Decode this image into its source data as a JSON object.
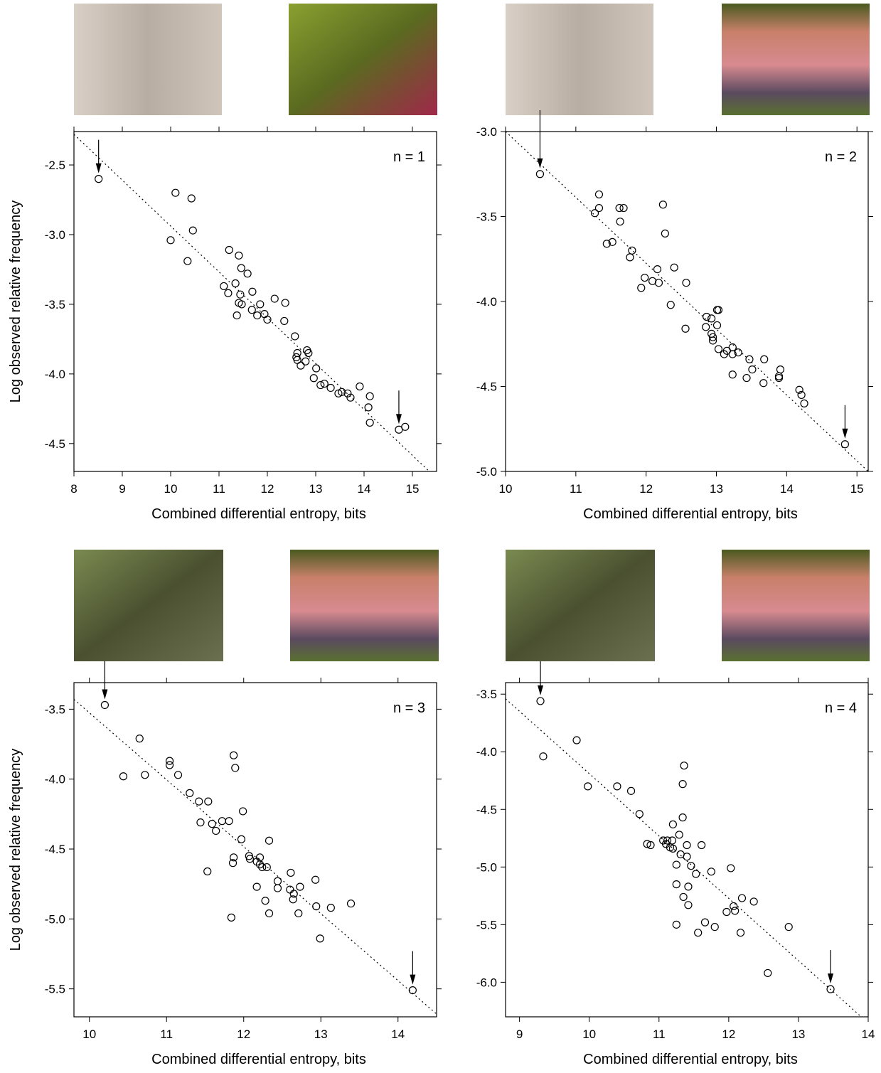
{
  "chart_data": [
    {
      "type": "scatter",
      "annotation": "n = 1",
      "xlabel": "Combined differential entropy, bits",
      "ylabel": "Log observed relative frequency",
      "color": "#000000",
      "xlim": [
        8,
        15.5
      ],
      "ylim": [
        -4.7,
        -2.26
      ],
      "xticks": [
        8,
        9,
        10,
        11,
        12,
        13,
        14,
        15
      ],
      "yticks": [
        -2.5,
        {
          "value": -3,
          "label": "-3.0"
        },
        -3.5,
        {
          "value": -4,
          "label": "-4.0"
        },
        -4.5
      ],
      "x": [
        8.51,
        10.1,
        10.43,
        10.46,
        10.0,
        10.35,
        11.21,
        11.41,
        11.46,
        11.59,
        11.1,
        11.19,
        11.34,
        11.44,
        11.41,
        11.47,
        11.69,
        11.68,
        11.37,
        11.79,
        11.85,
        11.94,
        12.0,
        12.15,
        12.37,
        12.35,
        12.57,
        12.62,
        12.6,
        12.62,
        12.69,
        12.79,
        12.82,
        12.85,
        13.01,
        12.96,
        13.1,
        13.18,
        13.31,
        13.47,
        13.54,
        13.66,
        13.72,
        13.91,
        14.12,
        14.09,
        14.12,
        14.72,
        14.85
      ],
      "y": [
        -2.6,
        -2.7,
        -2.74,
        -2.97,
        -3.04,
        -3.19,
        -3.11,
        -3.15,
        -3.24,
        -3.28,
        -3.37,
        -3.42,
        -3.35,
        -3.43,
        -3.49,
        -3.5,
        -3.41,
        -3.54,
        -3.58,
        -3.58,
        -3.5,
        -3.57,
        -3.61,
        -3.46,
        -3.49,
        -3.62,
        -3.73,
        -3.85,
        -3.88,
        -3.9,
        -3.94,
        -3.91,
        -3.83,
        -3.85,
        -3.96,
        -4.03,
        -4.08,
        -4.07,
        -4.1,
        -4.14,
        -4.13,
        -4.14,
        -4.17,
        -4.09,
        -4.16,
        -4.24,
        -4.35,
        -4.4,
        -4.38
      ],
      "fit": {
        "x": [
          8,
          15.35
        ],
        "y": [
          -2.28,
          -4.7
        ]
      },
      "arrows": {
        "x": [
          8.51,
          14.72
        ],
        "y": [
          -2.6,
          -4.4
        ]
      }
    },
    {
      "type": "scatter",
      "annotation": "n = 2",
      "xlabel": "Combined differential entropy, bits",
      "color": "#000000",
      "xlim": [
        10,
        15.16
      ],
      "ylim": [
        -5,
        -3
      ],
      "xticks": [
        10,
        11,
        12,
        13,
        14,
        15
      ],
      "yticks": [
        {
          "value": -3,
          "label": "-3.0"
        },
        -3.5,
        {
          "value": -4,
          "label": "-4.0"
        },
        -4.5,
        {
          "value": -5,
          "label": "-5.0"
        }
      ],
      "x": [
        10.49,
        11.33,
        11.27,
        11.33,
        11.62,
        11.68,
        11.63,
        11.44,
        11.52,
        11.8,
        11.77,
        12.24,
        12.27,
        11.98,
        11.93,
        12.09,
        12.16,
        12.18,
        12.4,
        12.57,
        12.35,
        12.56,
        12.86,
        12.85,
        12.93,
        12.93,
        12.95,
        12.95,
        13.01,
        13.01,
        13.03,
        13.03,
        13.11,
        13.15,
        13.23,
        13.23,
        13.31,
        13.23,
        13.47,
        13.51,
        13.43,
        13.68,
        13.67,
        13.89,
        13.91,
        13.89,
        14.18,
        14.21,
        14.25,
        14.83
      ],
      "y": [
        -3.25,
        -3.37,
        -3.48,
        -3.45,
        -3.45,
        -3.45,
        -3.53,
        -3.66,
        -3.65,
        -3.7,
        -3.74,
        -3.43,
        -3.6,
        -3.86,
        -3.92,
        -3.88,
        -3.81,
        -3.89,
        -3.8,
        -3.89,
        -4.02,
        -4.16,
        -4.09,
        -4.15,
        -4.1,
        -4.19,
        -4.21,
        -4.23,
        -4.14,
        -4.05,
        -4.05,
        -4.28,
        -4.31,
        -4.29,
        -4.27,
        -4.31,
        -4.3,
        -4.43,
        -4.34,
        -4.4,
        -4.45,
        -4.34,
        -4.48,
        -4.45,
        -4.4,
        -4.44,
        -4.52,
        -4.55,
        -4.6,
        -4.84
      ],
      "fit": {
        "x": [
          10,
          15.16
        ],
        "y": [
          -3,
          -5
        ]
      },
      "arrows": {
        "x": [
          10.49,
          14.83
        ],
        "y": [
          -3.25,
          -4.84
        ]
      }
    },
    {
      "type": "scatter",
      "annotation": "n = 3",
      "xlabel": "Combined differential entropy, bits",
      "ylabel": "Log observed relative frequency",
      "color": "#000000",
      "xlim": [
        9.8,
        14.5
      ],
      "ylim": [
        -5.7,
        -3.31
      ],
      "xticks": [
        10,
        11,
        12,
        13,
        14
      ],
      "yticks": [
        -3.5,
        {
          "value": -4,
          "label": "-4.0"
        },
        -4.5,
        {
          "value": -5,
          "label": "-5.0"
        },
        -5.5
      ],
      "x": [
        10.2,
        10.65,
        10.44,
        10.72,
        11.04,
        11.04,
        11.15,
        11.3,
        11.42,
        11.54,
        11.44,
        11.59,
        11.64,
        11.72,
        11.81,
        11.87,
        11.89,
        11.99,
        11.97,
        11.87,
        11.86,
        11.53,
        11.84,
        12.07,
        12.08,
        12.17,
        12.21,
        12.21,
        12.24,
        12.3,
        12.33,
        12.17,
        12.28,
        12.33,
        12.44,
        12.44,
        12.61,
        12.6,
        12.65,
        12.64,
        12.73,
        12.71,
        12.93,
        12.94,
        13.13,
        12.99,
        13.39,
        14.19
      ],
      "y": [
        -3.47,
        -3.71,
        -3.98,
        -3.97,
        -3.87,
        -3.9,
        -3.97,
        -4.1,
        -4.16,
        -4.16,
        -4.31,
        -4.32,
        -4.37,
        -4.3,
        -4.3,
        -3.83,
        -3.92,
        -4.23,
        -4.43,
        -4.56,
        -4.6,
        -4.66,
        -4.99,
        -4.55,
        -4.57,
        -4.59,
        -4.56,
        -4.61,
        -4.63,
        -4.63,
        -4.44,
        -4.77,
        -4.87,
        -4.96,
        -4.73,
        -4.78,
        -4.67,
        -4.79,
        -4.82,
        -4.86,
        -4.77,
        -4.96,
        -4.72,
        -4.91,
        -4.92,
        -5.14,
        -4.89,
        -5.51
      ],
      "fit": {
        "x": [
          9.8,
          14.5
        ],
        "y": [
          -3.43,
          -5.68
        ]
      },
      "arrows": {
        "x": [
          10.2,
          14.19
        ],
        "y": [
          -3.47,
          -5.51
        ]
      }
    },
    {
      "type": "scatter",
      "annotation": "n = 4",
      "xlabel": "Combined differential entropy, bits",
      "color": "#000000",
      "xlim": [
        8.8,
        14
      ],
      "ylim": [
        -6.3,
        -3.4
      ],
      "xticks": [
        9,
        10,
        11,
        12,
        13,
        14
      ],
      "yticks": [
        -3.5,
        {
          "value": -4,
          "label": "-4.0"
        },
        -4.5,
        {
          "value": -5,
          "label": "-5.0"
        },
        -5.5,
        {
          "value": -6,
          "label": "-6.0"
        }
      ],
      "x": [
        9.3,
        9.34,
        9.82,
        9.98,
        10.4,
        10.6,
        10.72,
        10.83,
        10.88,
        11.06,
        11.12,
        11.1,
        11.2,
        11.19,
        11.16,
        11.2,
        11.25,
        11.29,
        11.31,
        11.34,
        11.34,
        11.36,
        11.4,
        11.4,
        11.46,
        11.53,
        11.25,
        11.35,
        11.42,
        11.42,
        11.61,
        11.75,
        11.66,
        11.8,
        11.56,
        11.25,
        12.03,
        11.97,
        12.07,
        12.09,
        12.19,
        12.36,
        12.17,
        12.86,
        12.56,
        13.46
      ],
      "y": [
        -3.56,
        -4.04,
        -3.9,
        -4.3,
        -4.3,
        -4.34,
        -4.54,
        -4.8,
        -4.81,
        -4.77,
        -4.77,
        -4.8,
        -4.63,
        -4.77,
        -4.83,
        -4.84,
        -4.98,
        -4.72,
        -4.89,
        -4.57,
        -4.28,
        -4.12,
        -4.81,
        -4.91,
        -4.99,
        -5.06,
        -5.15,
        -5.26,
        -5.17,
        -5.33,
        -4.81,
        -5.04,
        -5.48,
        -5.52,
        -5.57,
        -5.5,
        -5.01,
        -5.39,
        -5.34,
        -5.38,
        -5.27,
        -5.3,
        -5.57,
        -5.52,
        -5.92,
        -6.06
      ],
      "fit": {
        "x": [
          8.8,
          13.9
        ],
        "y": [
          -3.54,
          -6.3
        ]
      },
      "arrows": {
        "x": [
          9.3,
          13.46
        ],
        "y": [
          -3.56,
          -6.06
        ]
      }
    }
  ]
}
